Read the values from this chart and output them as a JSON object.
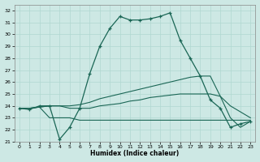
{
  "xlabel": "Humidex (Indice chaleur)",
  "bg_color": "#cde8e4",
  "grid_color": "#b0d8d0",
  "line_color": "#1a6655",
  "x_ticks": [
    0,
    1,
    2,
    3,
    4,
    5,
    6,
    7,
    8,
    9,
    10,
    11,
    12,
    13,
    14,
    15,
    16,
    17,
    18,
    19,
    20,
    21,
    22,
    23
  ],
  "ylim": [
    21,
    32.5
  ],
  "xlim": [
    -0.5,
    23.5
  ],
  "yticks": [
    21,
    22,
    23,
    24,
    25,
    26,
    27,
    28,
    29,
    30,
    31,
    32
  ],
  "line1_x": [
    0,
    1,
    2,
    3,
    4,
    5,
    6,
    7,
    8,
    9,
    10,
    11,
    12,
    13,
    14,
    15,
    16,
    17,
    18,
    19,
    20,
    21,
    22,
    23
  ],
  "line1_y": [
    23.8,
    23.7,
    24.0,
    24.0,
    21.2,
    22.2,
    23.8,
    26.7,
    29.0,
    30.5,
    31.5,
    31.2,
    31.2,
    31.3,
    31.5,
    31.8,
    29.5,
    28.0,
    26.5,
    24.5,
    23.8,
    22.2,
    22.5,
    22.7
  ],
  "line2_x": [
    0,
    1,
    2,
    3,
    4,
    5,
    6,
    7,
    8,
    9,
    10,
    11,
    12,
    13,
    14,
    15,
    16,
    17,
    18,
    19,
    20,
    21,
    22,
    23
  ],
  "line2_y": [
    23.8,
    23.8,
    23.9,
    24.0,
    24.0,
    24.0,
    24.1,
    24.3,
    24.6,
    24.8,
    25.0,
    25.2,
    25.4,
    25.6,
    25.8,
    26.0,
    26.2,
    26.4,
    26.5,
    26.5,
    24.8,
    23.0,
    22.2,
    22.7
  ],
  "line3_x": [
    0,
    1,
    2,
    3,
    4,
    5,
    6,
    7,
    8,
    9,
    10,
    11,
    12,
    13,
    14,
    15,
    16,
    17,
    18,
    19,
    20,
    21,
    22,
    23
  ],
  "line3_y": [
    23.8,
    23.8,
    23.9,
    24.0,
    24.0,
    23.8,
    23.8,
    23.8,
    24.0,
    24.1,
    24.2,
    24.4,
    24.5,
    24.7,
    24.8,
    24.9,
    25.0,
    25.0,
    25.0,
    25.0,
    24.8,
    24.0,
    23.5,
    23.0
  ],
  "line4_x": [
    0,
    1,
    2,
    3,
    4,
    5,
    6,
    7,
    8,
    9,
    10,
    11,
    12,
    13,
    14,
    15,
    16,
    17,
    18,
    19,
    20,
    21,
    22,
    23
  ],
  "line4_y": [
    23.8,
    23.8,
    23.9,
    23.0,
    23.0,
    23.0,
    22.8,
    22.8,
    22.8,
    22.8,
    22.8,
    22.8,
    22.8,
    22.8,
    22.8,
    22.8,
    22.8,
    22.8,
    22.8,
    22.8,
    22.8,
    22.8,
    22.8,
    22.8
  ]
}
